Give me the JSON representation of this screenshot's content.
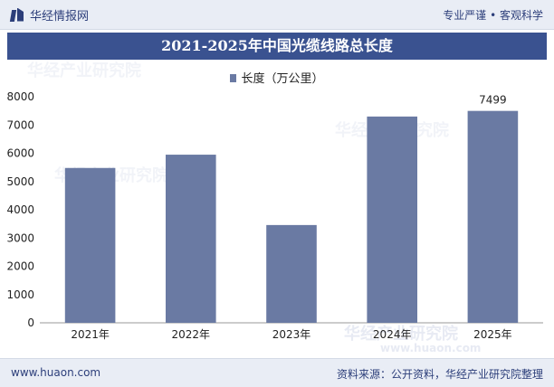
{
  "header": {
    "brand": "华经情报网",
    "slogan": "专业严谨 • 客观科学"
  },
  "chart_data": {
    "type": "bar",
    "title": "2021-2025年中国光缆线路总长度",
    "categories": [
      "2021年",
      "2022年",
      "2023年",
      "2024年",
      "2025年"
    ],
    "series": [
      {
        "name": "长度（万公里）",
        "values": [
          5480,
          5950,
          3460,
          7300,
          7499
        ]
      }
    ],
    "data_labels": [
      null,
      null,
      null,
      null,
      "7499"
    ],
    "y_ticks": [
      0,
      1000,
      2000,
      3000,
      4000,
      5000,
      6000,
      7000,
      8000
    ],
    "ylim": [
      0,
      8000
    ],
    "legend_position": "top-center",
    "grid": false,
    "bar_color": "#6a7aa3"
  },
  "footer": {
    "site": "www.huaon.com",
    "source": "资料来源：公开资料，华经产业研究院整理"
  },
  "watermarks": [
    "华经产业研究院",
    "华经产业研究院",
    "华经产业研究院",
    "华经产业研究院",
    "www.huaon.com"
  ]
}
